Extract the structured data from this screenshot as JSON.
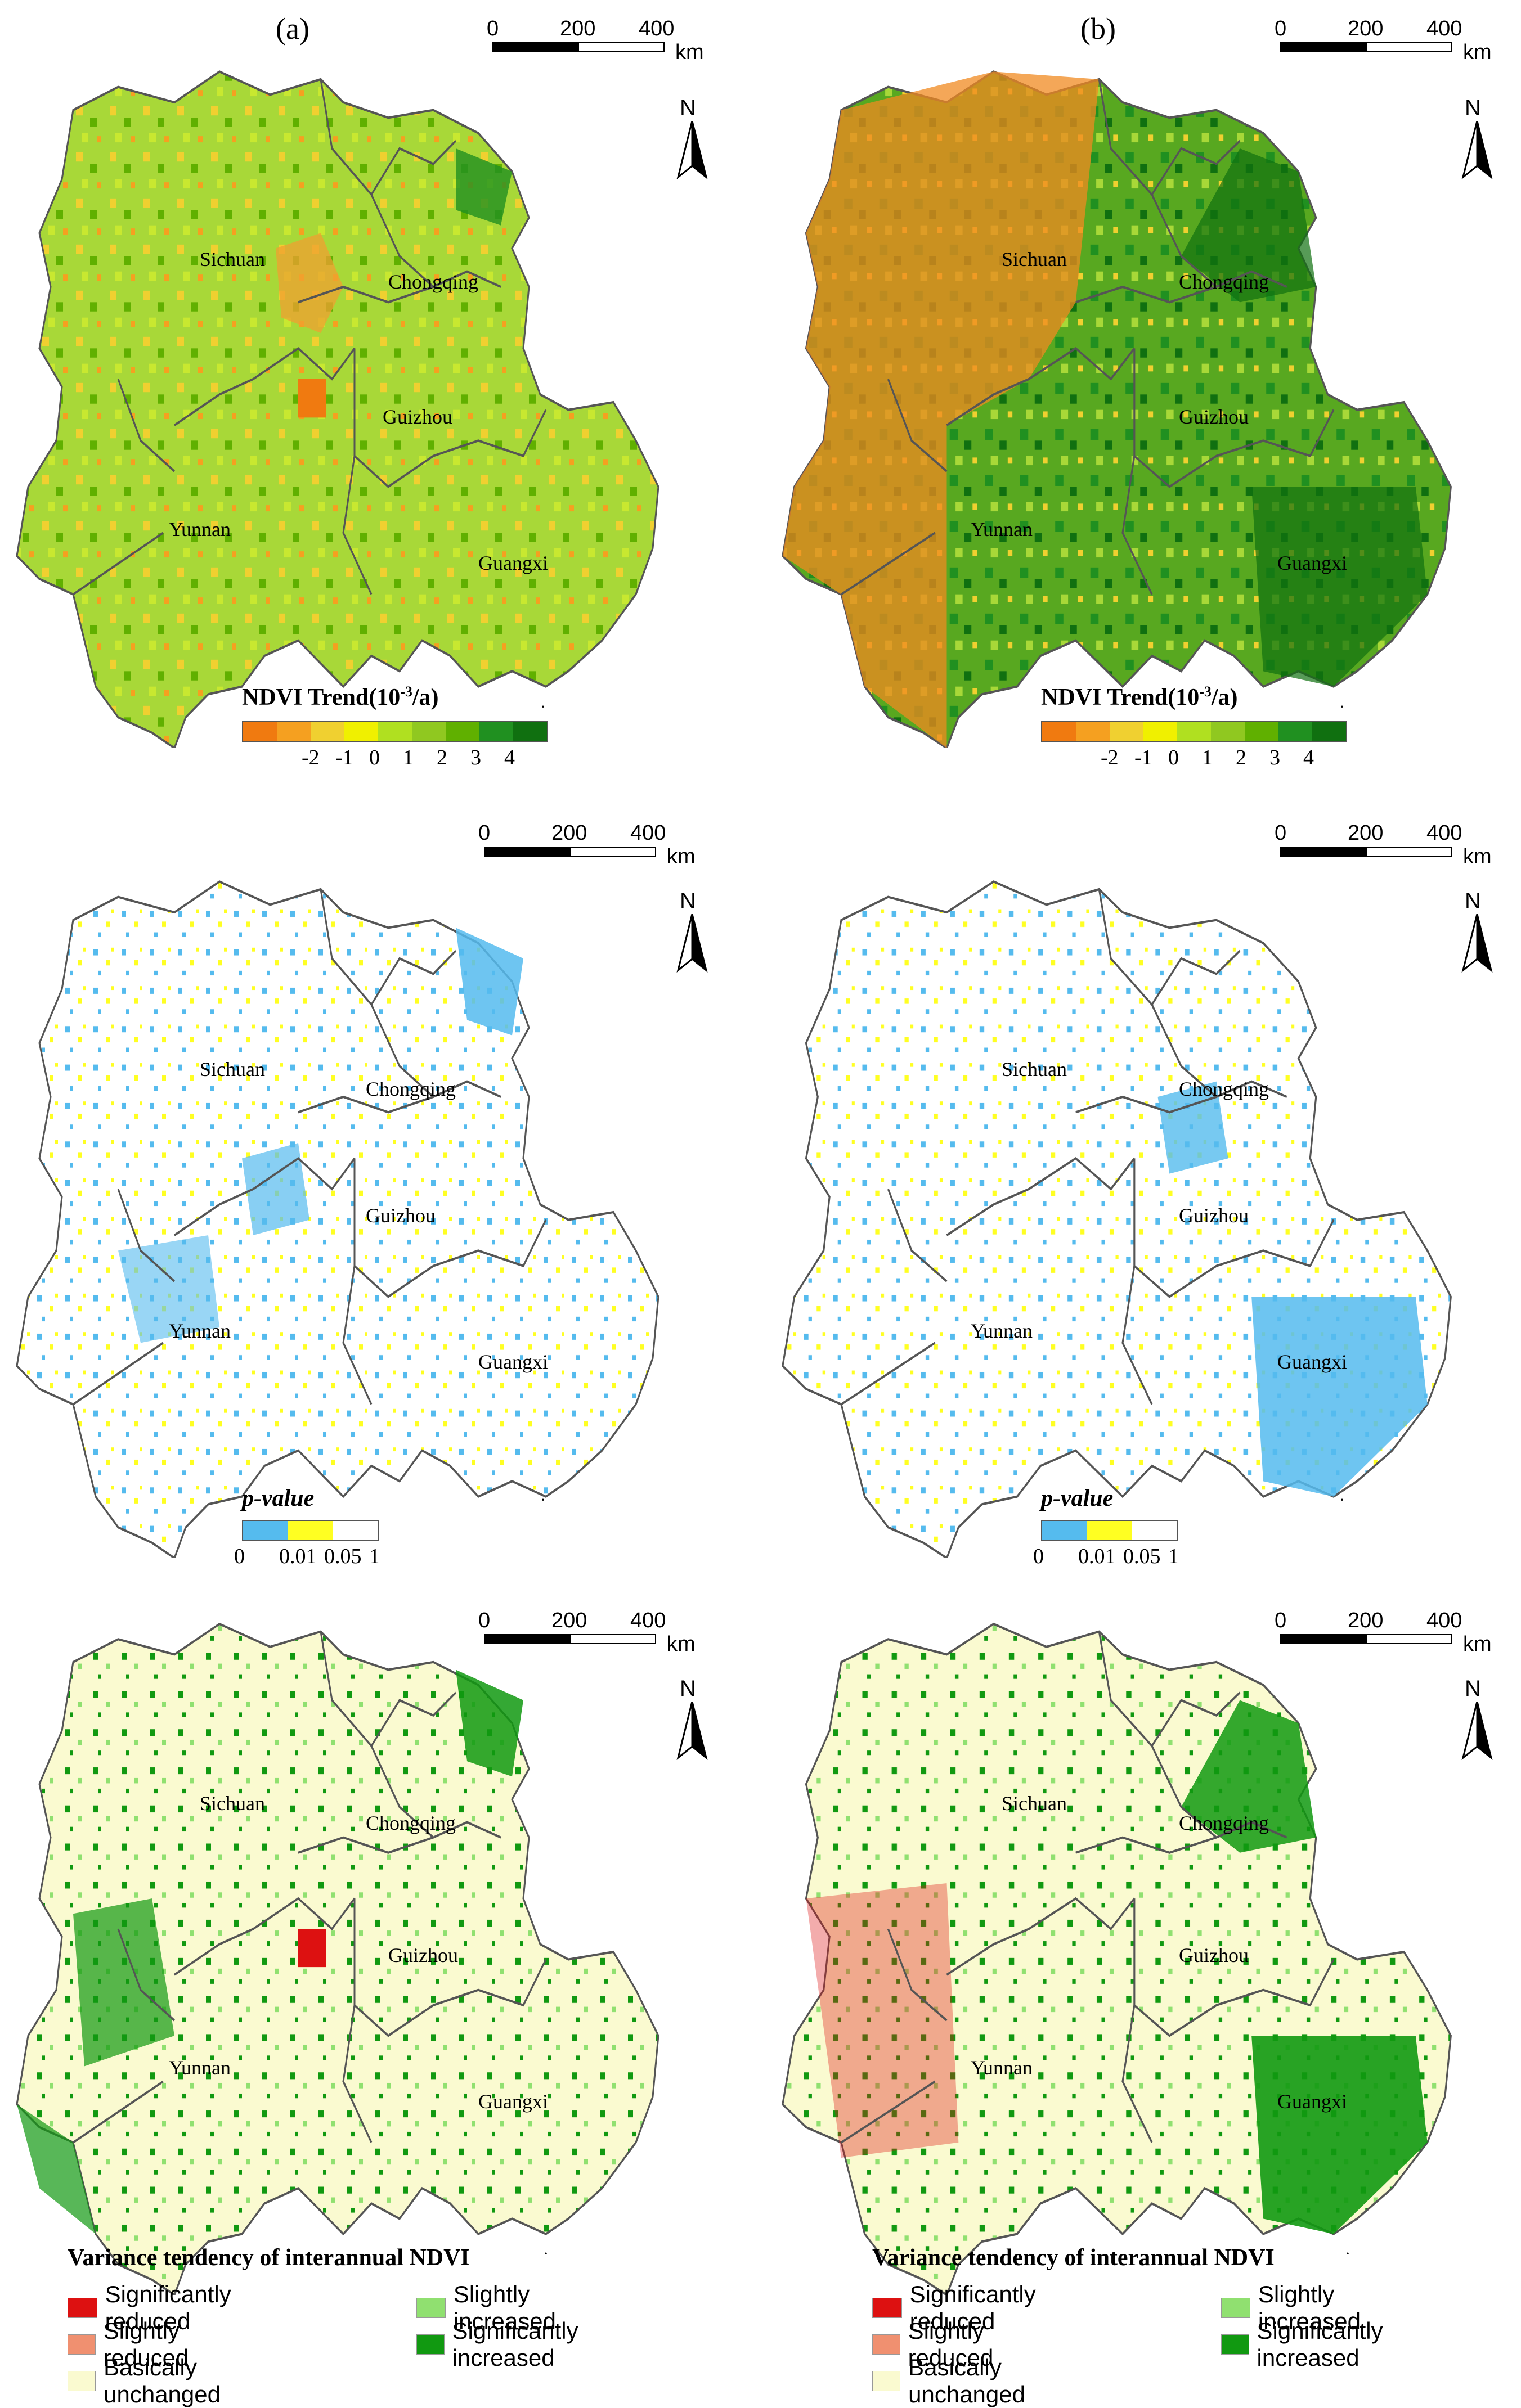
{
  "panels": {
    "a": {
      "label": "(a)"
    },
    "b": {
      "label": "(b)"
    }
  },
  "scalebar": {
    "t0": "0",
    "t1": "200",
    "t2": "400",
    "unit": "km"
  },
  "north": {
    "letter": "N"
  },
  "provinces": {
    "sichuan": "Sichuan",
    "chongqing": "Chongqing",
    "guizhou": "Guizhou",
    "yunnan": "Yunnan",
    "guangxi": "Guangxi"
  },
  "trend_legend": {
    "title_main": "NDVI Trend(10",
    "title_sup": "-3",
    "title_end": "/a)",
    "colors": [
      "#f07a10",
      "#f5a020",
      "#f0d030",
      "#f0f000",
      "#b0e020",
      "#90c820",
      "#60b000",
      "#209020",
      "#107010"
    ],
    "ticks": [
      "-2",
      "-1",
      "0",
      "1",
      "2",
      "3",
      "4"
    ]
  },
  "pvalue_legend": {
    "title": "p-value",
    "colors": [
      "#55bbee",
      "#ffff22",
      "#ffffff"
    ],
    "ticks": [
      "0",
      "0.01",
      "0.05",
      "1"
    ]
  },
  "tendency_legend": {
    "title": "Variance tendency of interannual NDVI",
    "items": [
      {
        "label": "Significantly reduced",
        "color": "#dd1111"
      },
      {
        "label": "Slightly reduced",
        "color": "#f09070"
      },
      {
        "label": "Basically unchanged",
        "color": "#fafad0"
      },
      {
        "label": "Slightly increased",
        "color": "#90e070"
      },
      {
        "label": "Significantly increased",
        "color": "#119911"
      }
    ]
  },
  "map_fills": {
    "trend_a": "#a8d838",
    "trend_b": "#60a820",
    "pvalue": "#ffffff",
    "tendency": "#fafad0",
    "border": "#555555"
  }
}
